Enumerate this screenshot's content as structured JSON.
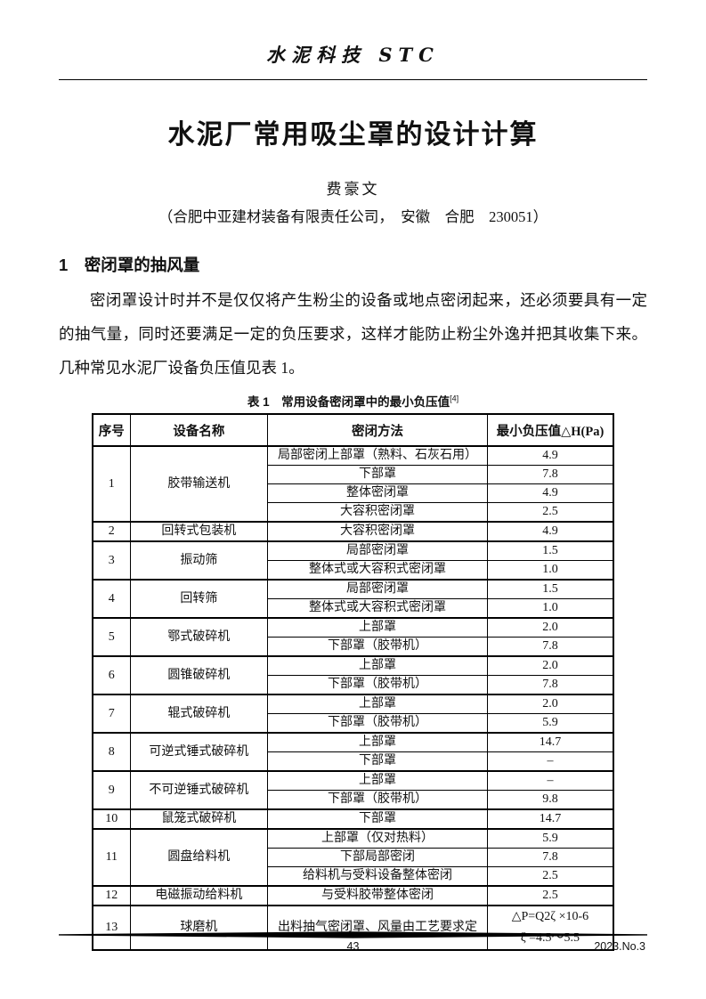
{
  "page": {
    "journal_header": "水泥科技 STC",
    "title": "水泥厂常用吸尘罩的设计计算",
    "author": "费豪文",
    "affiliation": "（合肥中亚建材装备有限责任公司，　安徽　合肥　230051）",
    "section_heading": "1　密闭罩的抽风量",
    "paragraph": "密闭罩设计时并不是仅仅将产生粉尘的设备或地点密闭起来，还必须要具有一定的抽气量，同时还要满足一定的负压要求，这样才能防止粉尘外逸并把其收集下来。几种常见水泥厂设备负压值见表 1。",
    "footer": {
      "page_number": "43",
      "issue": "2023.No.3"
    }
  },
  "table": {
    "caption": "表 1　常用设备密闭罩中的最小负压值",
    "caption_superscript": "[4]",
    "headers": [
      "序号",
      "设备名称",
      "密闭方法",
      "最小负压值△H(Pa)"
    ],
    "groups": [
      {
        "no": "1",
        "device": "胶带输送机",
        "rows": [
          {
            "method": "局部密闭上部罩（熟料、石灰石用）",
            "value": "4.9"
          },
          {
            "method": "下部罩",
            "value": "7.8"
          },
          {
            "method": "整体密闭罩",
            "value": "4.9"
          },
          {
            "method": "大容积密闭罩",
            "value": "2.5"
          }
        ]
      },
      {
        "no": "2",
        "device": "回转式包装机",
        "rows": [
          {
            "method": "大容积密闭罩",
            "value": "4.9"
          }
        ]
      },
      {
        "no": "3",
        "device": "振动筛",
        "rows": [
          {
            "method": "局部密闭罩",
            "value": "1.5"
          },
          {
            "method": "整体式或大容积式密闭罩",
            "value": "1.0"
          }
        ]
      },
      {
        "no": "4",
        "device": "回转筛",
        "rows": [
          {
            "method": "局部密闭罩",
            "value": "1.5"
          },
          {
            "method": "整体式或大容积式密闭罩",
            "value": "1.0"
          }
        ]
      },
      {
        "no": "5",
        "device": "鄂式破碎机",
        "rows": [
          {
            "method": "上部罩",
            "value": "2.0"
          },
          {
            "method": "下部罩（胶带机）",
            "value": "7.8"
          }
        ]
      },
      {
        "no": "6",
        "device": "圆锥破碎机",
        "rows": [
          {
            "method": "上部罩",
            "value": "2.0"
          },
          {
            "method": "下部罩（胶带机）",
            "value": "7.8"
          }
        ]
      },
      {
        "no": "7",
        "device": "辊式破碎机",
        "rows": [
          {
            "method": "上部罩",
            "value": "2.0"
          },
          {
            "method": "下部罩（胶带机）",
            "value": "5.9"
          }
        ]
      },
      {
        "no": "8",
        "device": "可逆式锤式破碎机",
        "rows": [
          {
            "method": "上部罩",
            "value": "14.7"
          },
          {
            "method": "下部罩",
            "value": "–"
          }
        ]
      },
      {
        "no": "9",
        "device": "不可逆锤式破碎机",
        "rows": [
          {
            "method": "上部罩",
            "value": "–"
          },
          {
            "method": "下部罩（胶带机）",
            "value": "9.8"
          }
        ]
      },
      {
        "no": "10",
        "device": "鼠笼式破碎机",
        "rows": [
          {
            "method": "下部罩",
            "value": "14.7"
          }
        ]
      },
      {
        "no": "11",
        "device": "圆盘给料机",
        "rows": [
          {
            "method": "上部罩（仅对热料）",
            "value": "5.9"
          },
          {
            "method": "下部局部密闭",
            "value": "7.8"
          },
          {
            "method": "给料机与受料设备整体密闭",
            "value": "2.5"
          }
        ]
      },
      {
        "no": "12",
        "device": "电磁振动给料机",
        "rows": [
          {
            "method": "与受料胶带整体密闭",
            "value": "2.5"
          }
        ]
      },
      {
        "no": "13",
        "device": "球磨机",
        "rows": [
          {
            "method": "出料抽气密闭罩、风量由工艺要求定",
            "value": [
              "△P=Q2ζ ×10-6",
              "ζ =4.5～5.5"
            ]
          }
        ]
      }
    ]
  }
}
